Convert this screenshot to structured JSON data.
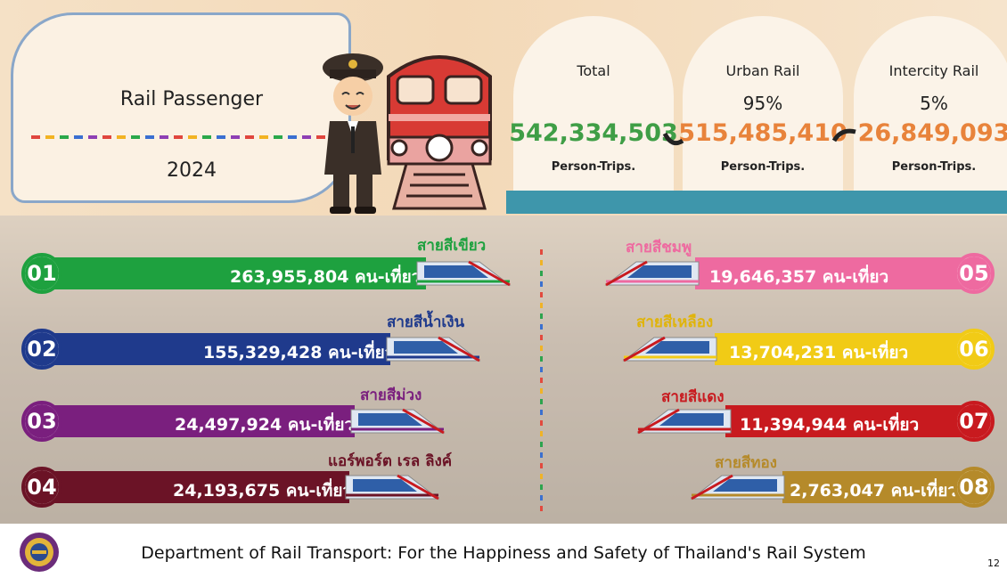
{
  "header": {
    "title": "Rail Passenger",
    "year": "2024"
  },
  "stats": [
    {
      "heading": "Total",
      "percent": "",
      "number": "542,334,503",
      "unit": "Person-Trips.",
      "color": "#3f9e46"
    },
    {
      "heading": "Urban Rail",
      "percent": "95%",
      "number": "515,485,410",
      "unit": "Person-Trips.",
      "color": "#e8833b"
    },
    {
      "heading": "Intercity Rail",
      "percent": "5%",
      "number": "26,849,093",
      "unit": "Person-Trips.",
      "color": "#e8833b"
    }
  ],
  "lines": [
    {
      "no": "01",
      "name": "สายสีเขียว",
      "value": "263,955,804 คน-เที่ยว",
      "color": "#1ea13f",
      "name_color": "#1ea13f"
    },
    {
      "no": "02",
      "name": "สายสีน้ำเงิน",
      "value": "155,329,428 คน-เที่ยว",
      "color": "#1f3a8c",
      "name_color": "#1f3a8c"
    },
    {
      "no": "03",
      "name": "สายสีม่วง",
      "value": "24,497,924 คน-เที่ยว",
      "color": "#7a1f7e",
      "name_color": "#7a1f7e"
    },
    {
      "no": "04",
      "name": "แอร์พอร์ต เรล ลิงค์",
      "value": "24,193,675 คน-เที่ยว",
      "color": "#6b1326",
      "name_color": "#6b1326"
    },
    {
      "no": "05",
      "name": "สายสีชมพู",
      "value": "19,646,357 คน-เที่ยว",
      "color": "#ee6aa0",
      "name_color": "#ee6aa0"
    },
    {
      "no": "06",
      "name": "สายสีเหลือง",
      "value": "13,704,231 คน-เที่ยว",
      "color": "#f1cb16",
      "name_color": "#e0b40a"
    },
    {
      "no": "07",
      "name": "สายสีแดง",
      "value": "11,394,944 คน-เที่ยว",
      "color": "#c81a1f",
      "name_color": "#c81a1f"
    },
    {
      "no": "08",
      "name": "สายสีทอง",
      "value": "2,763,047 คน-เที่ยว",
      "color": "#b58a2a",
      "name_color": "#b58a2a"
    }
  ],
  "footer": {
    "text": "Department of Rail Transport: For the Happiness and Safety of Thailand's Rail System",
    "page": "12"
  }
}
